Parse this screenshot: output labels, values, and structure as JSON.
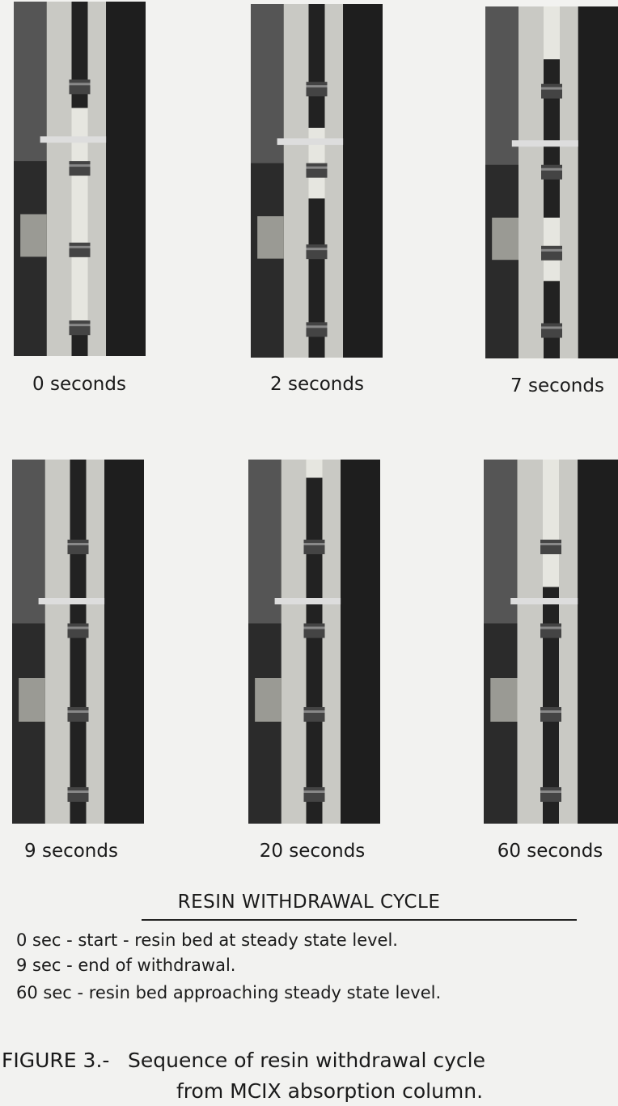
{
  "photos": [
    {
      "caption": "0 seconds"
    },
    {
      "caption": "2 seconds"
    },
    {
      "caption": "7 seconds"
    },
    {
      "caption": "9 seconds"
    },
    {
      "caption": "20 seconds"
    },
    {
      "caption": "60 seconds"
    }
  ],
  "legend": {
    "title": "RESIN WITHDRAWAL CYCLE",
    "items": [
      "0 sec - start - resin bed at steady state level.",
      "9 sec - end of withdrawal.",
      "60 sec - resin bed approaching steady state level."
    ]
  },
  "figure": {
    "label": "FIGURE 3.-",
    "lines": [
      "Sequence of resin withdrawal cycle",
      "from MCIX absorption column."
    ]
  }
}
